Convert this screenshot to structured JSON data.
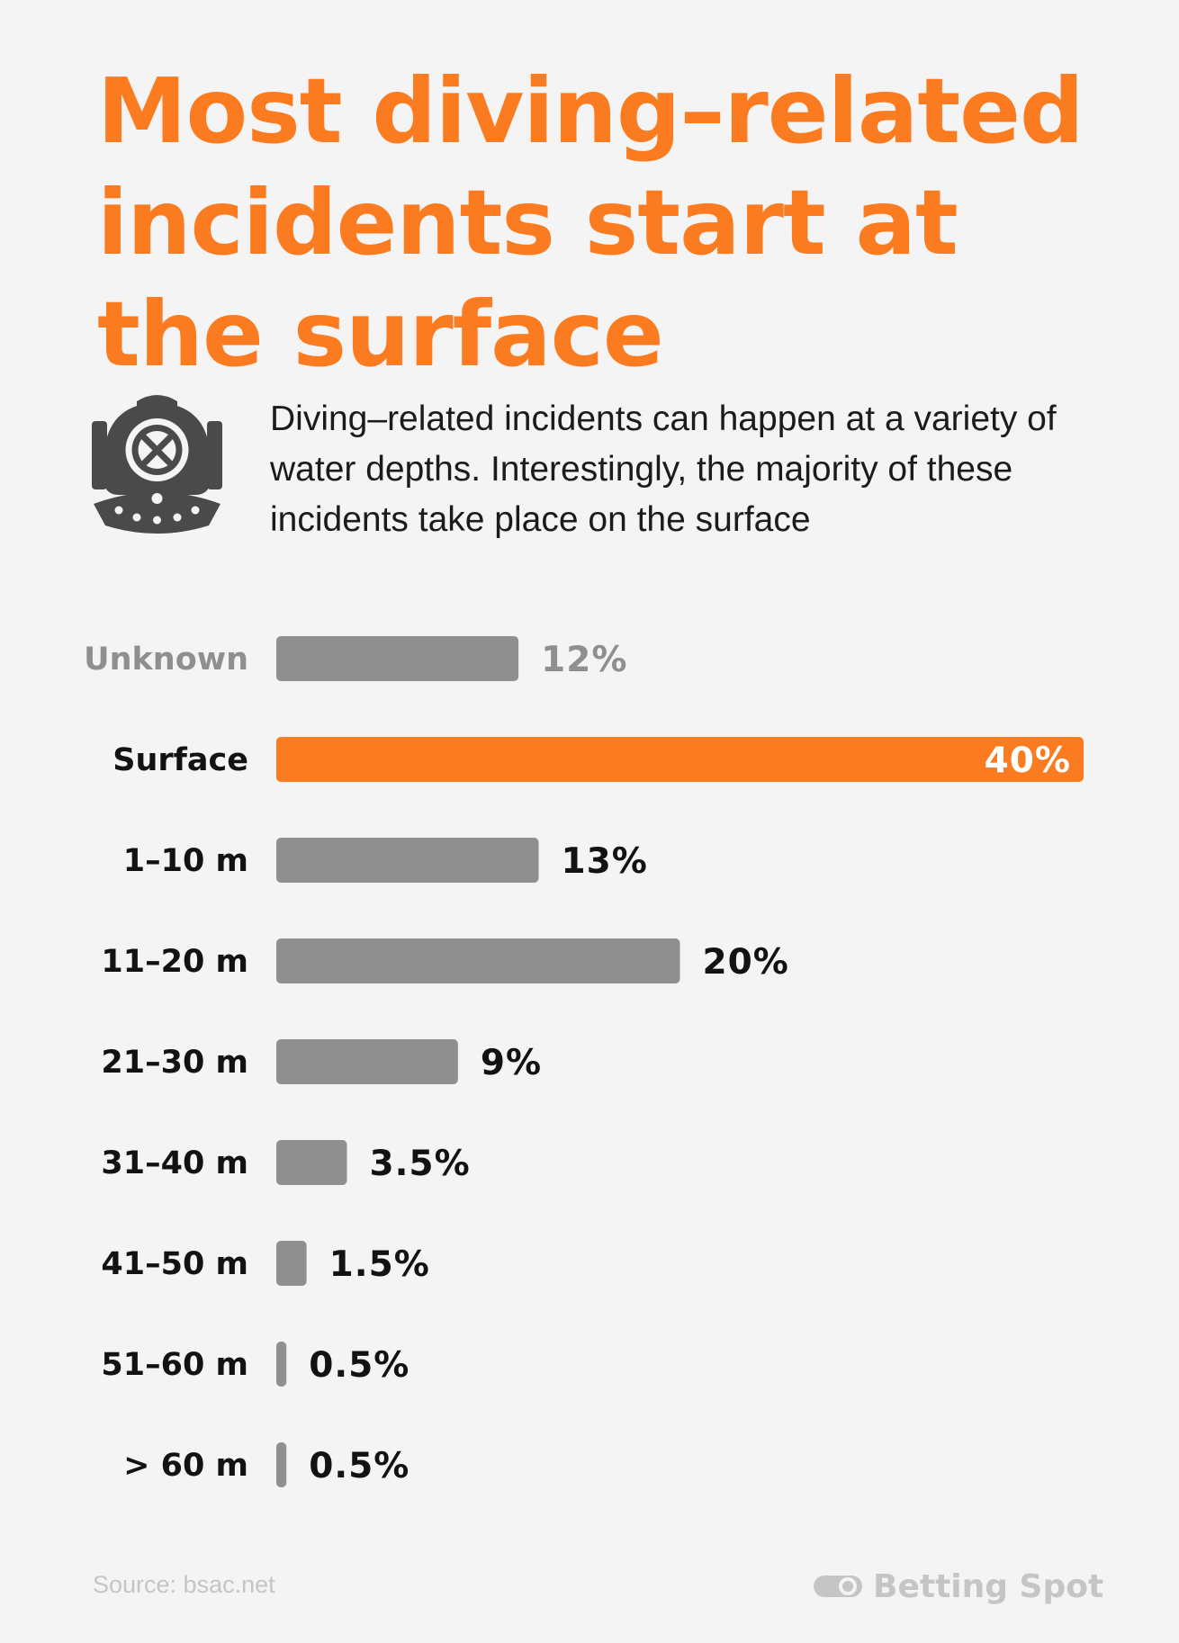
{
  "title": "Most diving–related incidents start at the surface",
  "intro": "Diving–related incidents can happen at a variety of water depths. Interestingly, the majority of these incidents take place on the surface",
  "icons": {
    "helmet": "diving-helmet-icon",
    "brand": "betting-spot-logo"
  },
  "colors": {
    "accent": "#fb7b20",
    "bar": "#8f8f8f",
    "unknown_text": "#8f8f8f",
    "text": "#121212",
    "background": "#f5f4f4",
    "footer": "#c5c5c5"
  },
  "chart_data": {
    "type": "bar",
    "orientation": "horizontal",
    "categories": [
      "Unknown",
      "Surface",
      "1–10 m",
      "11–20 m",
      "21–30 m",
      "31–40 m",
      "41–50 m",
      "51–60 m",
      "> 60 m"
    ],
    "values": [
      12,
      40,
      13,
      20,
      9,
      3.5,
      1.5,
      0.5,
      0.5
    ],
    "value_labels": [
      "12%",
      "40%",
      "13%",
      "20%",
      "9%",
      "3.5%",
      "1.5%",
      "0.5%",
      "0.5%"
    ],
    "highlight": "Surface",
    "muted": "Unknown",
    "xlim": [
      0,
      40
    ],
    "grid": false
  },
  "footer": {
    "source": "Source: bsac.net",
    "brand": "Betting Spot"
  }
}
